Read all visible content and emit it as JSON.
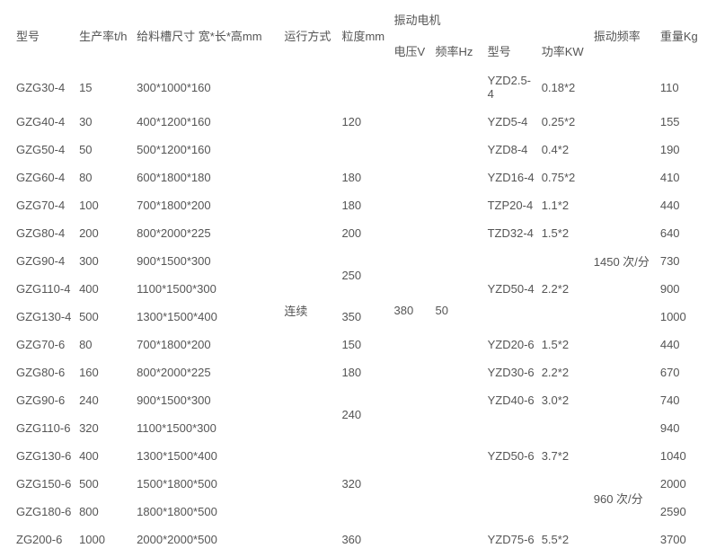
{
  "headers": {
    "model": "型号",
    "rate": "生产率t/h",
    "size": "给料槽尺寸 宽*长*高mm",
    "run": "运行方式",
    "grain": "粒度mm",
    "motor_group": "振动电机",
    "voltage": "电压V",
    "freq": "频率Hz",
    "motor_model": "型号",
    "power": "功率KW",
    "vib_freq": "振动频率",
    "weight": "重量Kg"
  },
  "shared": {
    "run": "连续",
    "voltage": "380",
    "freq": "50",
    "vfreq1": "1450 次/分",
    "vfreq2": "960 次/分"
  },
  "rows": [
    {
      "model": "GZG30-4",
      "rate": "15",
      "size": "300*1000*160",
      "grain": "",
      "motor": "YZD2.5-4",
      "power": "0.18*2",
      "weight": "110"
    },
    {
      "model": "GZG40-4",
      "rate": "30",
      "size": "400*1200*160",
      "grain": "120",
      "motor": "YZD5-4",
      "power": "0.25*2",
      "weight": "155"
    },
    {
      "model": "GZG50-4",
      "rate": "50",
      "size": "500*1200*160",
      "grain": "",
      "motor": "YZD8-4",
      "power": "0.4*2",
      "weight": "190"
    },
    {
      "model": "GZG60-4",
      "rate": "80",
      "size": "600*1800*180",
      "grain": "180",
      "motor": "YZD16-4",
      "power": "0.75*2",
      "weight": "410"
    },
    {
      "model": "GZG70-4",
      "rate": "100",
      "size": "700*1800*200",
      "grain": "180",
      "motor": "TZP20-4",
      "power": "1.1*2",
      "weight": "440"
    },
    {
      "model": "GZG80-4",
      "rate": "200",
      "size": "800*2000*225",
      "grain": "200",
      "motor": "TZD32-4",
      "power": "1.5*2",
      "weight": "640"
    },
    {
      "model": "GZG90-4",
      "rate": "300",
      "size": "900*1500*300",
      "grain": "",
      "motor": "",
      "power": "",
      "weight": "730"
    },
    {
      "model": "GZG110-4",
      "rate": "400",
      "size": "1100*1500*300",
      "grain": "",
      "motor": "YZD50-4",
      "power": "2.2*2",
      "weight": "900"
    },
    {
      "model": "GZG130-4",
      "rate": "500",
      "size": "1300*1500*400",
      "grain": "350",
      "motor": "",
      "power": "",
      "weight": "1000"
    },
    {
      "model": "GZG70-6",
      "rate": "80",
      "size": "700*1800*200",
      "grain": "150",
      "motor": "YZD20-6",
      "power": "1.5*2",
      "weight": "440"
    },
    {
      "model": "GZG80-6",
      "rate": "160",
      "size": "800*2000*225",
      "grain": "180",
      "motor": "YZD30-6",
      "power": "2.2*2",
      "weight": "670"
    },
    {
      "model": "GZG90-6",
      "rate": "240",
      "size": "900*1500*300",
      "grain": "",
      "motor": "YZD40-6",
      "power": "3.0*2",
      "weight": "740"
    },
    {
      "model": "GZG110-6",
      "rate": "320",
      "size": "1100*1500*300",
      "grain": "",
      "motor": "",
      "power": "",
      "weight": "940"
    },
    {
      "model": "GZG130-6",
      "rate": "400",
      "size": "1300*1500*400",
      "grain": "",
      "motor": "YZD50-6",
      "power": "3.7*2",
      "weight": "1040"
    },
    {
      "model": "GZG150-6",
      "rate": "500",
      "size": "1500*1800*500",
      "grain": "320",
      "motor": "",
      "power": "",
      "weight": "2000"
    },
    {
      "model": "GZG180-6",
      "rate": "800",
      "size": "1800*1800*500",
      "grain": "",
      "motor": "",
      "power": "",
      "weight": "2590"
    },
    {
      "model": "ZG200-6",
      "rate": "1000",
      "size": "2000*2000*500",
      "grain": "360",
      "motor": "YZD75-6",
      "power": "5.5*2",
      "weight": "3700"
    }
  ],
  "merges": {
    "grain_250": "250",
    "grain_240": "240"
  }
}
